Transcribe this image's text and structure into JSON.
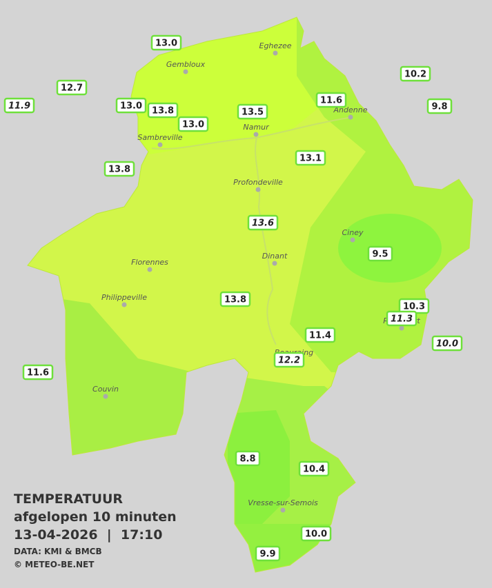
{
  "title": {
    "line1": "TEMPERATUUR",
    "line2": "afgelopen 10 minuten",
    "line3": "13-04-2026  |  17:10",
    "source": "DATA: KMI & BMCB",
    "copyright": "© METEO-BE.NET"
  },
  "cities": [
    "Eghezee",
    "Gembloux",
    "Andenne",
    "Namur",
    "Sambreville",
    "Profondeville",
    "Ciney",
    "Dinant",
    "Florennes",
    "Philippeville",
    "Beauraing",
    "Rochefort",
    "Couvin",
    "Vresse-sur-Semois"
  ],
  "stations": [
    {
      "label": "13.0",
      "italic": false
    },
    {
      "label": "12.7",
      "italic": false
    },
    {
      "label": "11.9",
      "italic": true
    },
    {
      "label": "13.0",
      "italic": false
    },
    {
      "label": "13.8",
      "italic": false
    },
    {
      "label": "13.0",
      "italic": false
    },
    {
      "label": "13.5",
      "italic": false
    },
    {
      "label": "11.6",
      "italic": false
    },
    {
      "label": "10.2",
      "italic": false
    },
    {
      "label": "9.8",
      "italic": false
    },
    {
      "label": "13.8",
      "italic": false
    },
    {
      "label": "13.1",
      "italic": false
    },
    {
      "label": "13.6",
      "italic": true
    },
    {
      "label": "9.5",
      "italic": false
    },
    {
      "label": "13.8",
      "italic": false
    },
    {
      "label": "10.3",
      "italic": false
    },
    {
      "label": "11.3",
      "italic": true
    },
    {
      "label": "11.4",
      "italic": false
    },
    {
      "label": "10.0",
      "italic": true
    },
    {
      "label": "12.2",
      "italic": true
    },
    {
      "label": "11.6",
      "italic": false
    },
    {
      "label": "8.8",
      "italic": false
    },
    {
      "label": "10.4",
      "italic": false
    },
    {
      "label": "10.0",
      "italic": false
    },
    {
      "label": "9.9",
      "italic": false
    }
  ]
}
